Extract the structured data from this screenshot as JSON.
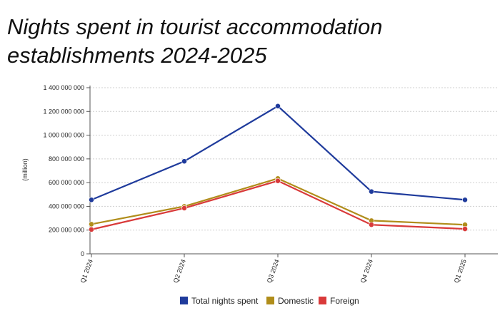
{
  "title_line1": "Nights spent in tourist accommodation",
  "title_line2": "establishments 2024-2025",
  "chart_data": {
    "type": "line",
    "title": "Nights spent in tourist accommodation establishments 2024-2025",
    "xlabel": "",
    "ylabel": "(million)",
    "categories": [
      "Q1 2024",
      "Q2 2024",
      "Q3 2024",
      "Q4 2024",
      "Q1 2025"
    ],
    "ylim": [
      0,
      1400000000
    ],
    "yticks": [
      0,
      200000000,
      400000000,
      600000000,
      800000000,
      1000000000,
      1200000000,
      1400000000
    ],
    "ytick_labels": [
      "0",
      "200 000 000",
      "400 000 000",
      "600 000 000",
      "800 000 000",
      "1 000 000 000",
      "1 200 000 000",
      "1 400 000 000"
    ],
    "grid": true,
    "legend_position": "bottom",
    "series": [
      {
        "name": "Total nights spent",
        "color": "#1f3b9c",
        "values": [
          455000000,
          780000000,
          1245000000,
          525000000,
          455000000
        ]
      },
      {
        "name": "Domestic",
        "color": "#b08d1a",
        "values": [
          250000000,
          400000000,
          635000000,
          280000000,
          245000000
        ]
      },
      {
        "name": "Foreign",
        "color": "#d93a3a",
        "values": [
          205000000,
          385000000,
          615000000,
          245000000,
          210000000
        ]
      }
    ]
  }
}
